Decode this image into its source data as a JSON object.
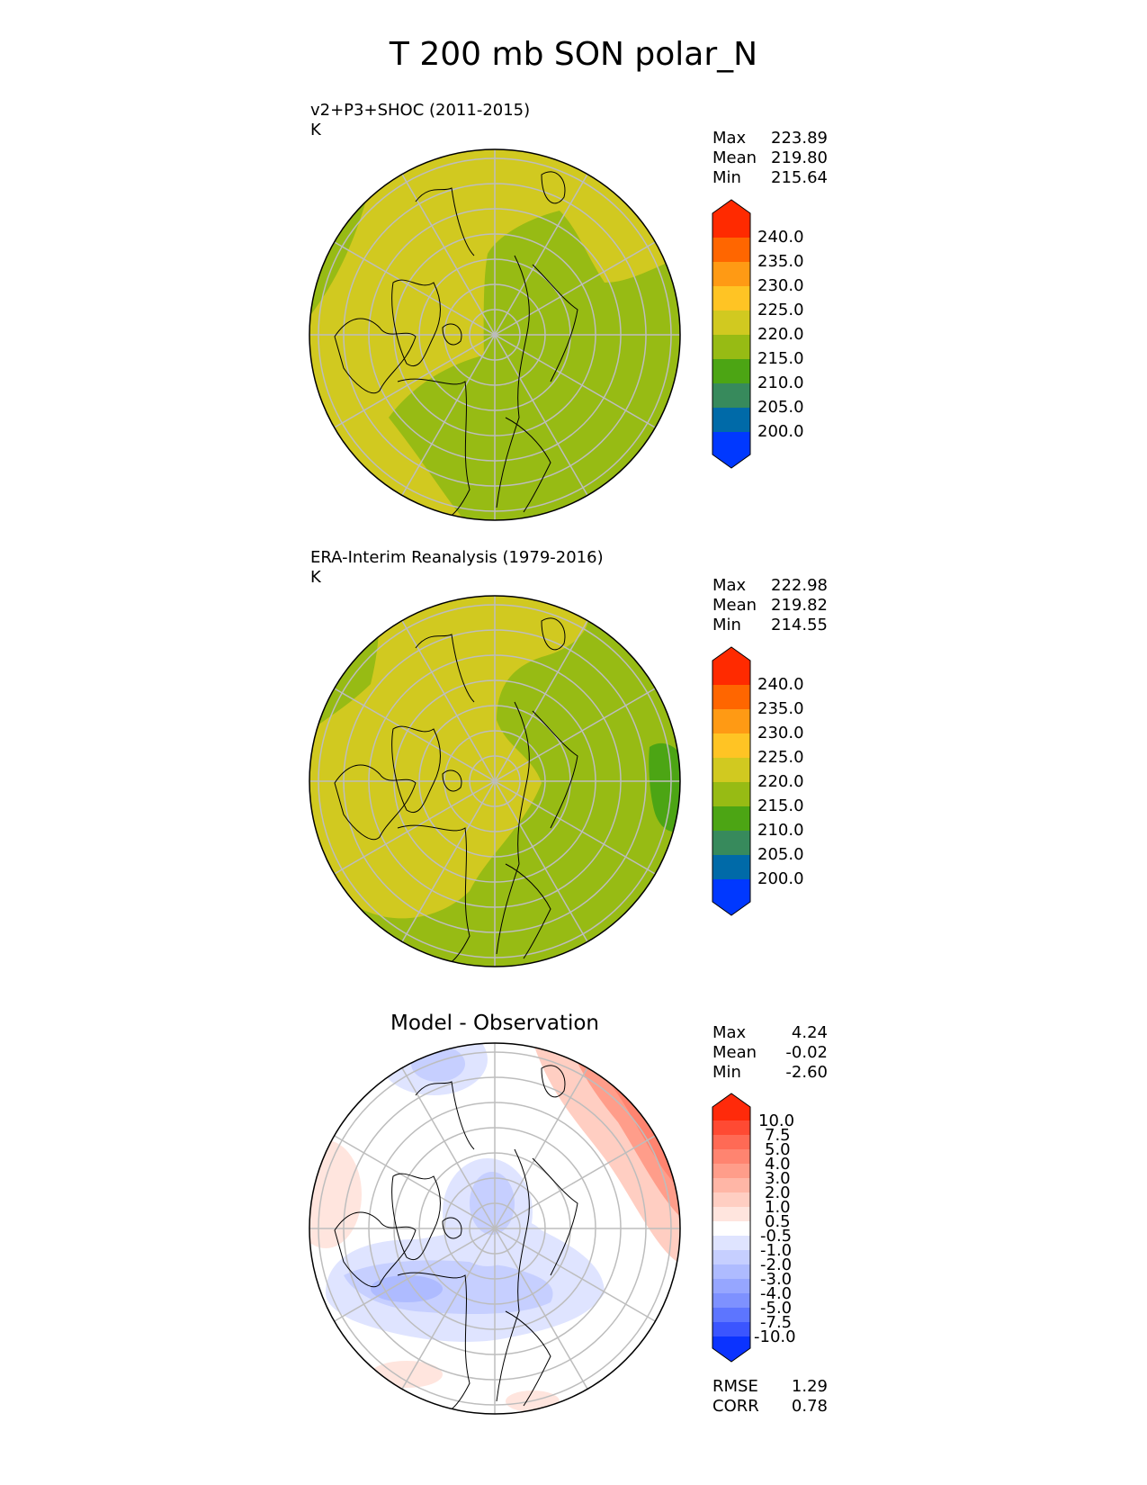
{
  "title": "T 200 mb SON polar_N",
  "panels": [
    {
      "id": "test",
      "title_line1": "v2+P3+SHOC (2011-2015)",
      "title_line2": "K",
      "stats": [
        {
          "label": "Max",
          "value": "223.89"
        },
        {
          "label": "Mean",
          "value": "219.80"
        },
        {
          "label": "Min",
          "value": "215.64"
        }
      ]
    },
    {
      "id": "ref",
      "title_line1": "ERA-Interim Reanalysis (1979-2016)",
      "title_line2": "K",
      "stats": [
        {
          "label": "Max",
          "value": "222.98"
        },
        {
          "label": "Mean",
          "value": "219.82"
        },
        {
          "label": "Min",
          "value": "214.55"
        }
      ]
    },
    {
      "id": "diff",
      "title": "Model - Observation",
      "stats": [
        {
          "label": "Max",
          "value": "4.24"
        },
        {
          "label": "Mean",
          "value": "-0.02"
        },
        {
          "label": "Min",
          "value": "-2.60"
        }
      ],
      "metrics": [
        {
          "label": "RMSE",
          "value": "1.29"
        },
        {
          "label": "CORR",
          "value": "0.78"
        }
      ]
    }
  ],
  "colorbars": {
    "field": {
      "ticks": [
        "240.0",
        "235.0",
        "230.0",
        "225.0",
        "220.0",
        "215.0",
        "210.0",
        "205.0",
        "200.0"
      ],
      "colors_top_to_bottom": [
        "#ff2a00",
        "#ff6600",
        "#ff9a14",
        "#ffc424",
        "#d1c920",
        "#97bb14",
        "#4ca514",
        "#378a5c",
        "#006aa8",
        "#0038ff"
      ]
    },
    "diff": {
      "ticks": [
        "10.0",
        "7.5",
        "5.0",
        "4.0",
        "3.0",
        "2.0",
        "1.0",
        "0.5",
        "-0.5",
        "-1.0",
        "-2.0",
        "-3.0",
        "-4.0",
        "-5.0",
        "-7.5",
        "-10.0"
      ],
      "colors_top_to_bottom": [
        "#ff2a0a",
        "#ff4a33",
        "#ff6a55",
        "#ff8470",
        "#ff9d8a",
        "#ffb6a6",
        "#ffcec2",
        "#ffe5de",
        "#ffffff",
        "#dfe4ff",
        "#c6cfff",
        "#aebbff",
        "#96a6ff",
        "#7e91ff",
        "#5d75ff",
        "#3b55ff",
        "#0b33ff"
      ]
    }
  },
  "chart_data": [
    {
      "type": "heatmap",
      "projection": "north polar stereographic",
      "title": "v2+P3+SHOC (2011-2015)",
      "units": "K",
      "levels": [
        200,
        205,
        210,
        215,
        220,
        225,
        230,
        235,
        240
      ],
      "extend": "both",
      "regions": [
        {
          "category": "215-220",
          "description": "eastern hemisphere sector and North Pacific / Siberia"
        },
        {
          "category": "220-225",
          "description": "North Atlantic, Greenland, North America, northwest corner"
        }
      ],
      "max": 223.89,
      "mean": 219.8,
      "min": 215.64
    },
    {
      "type": "heatmap",
      "projection": "north polar stereographic",
      "title": "ERA-Interim Reanalysis (1979-2016)",
      "units": "K",
      "levels": [
        200,
        205,
        210,
        215,
        220,
        225,
        230,
        235,
        240
      ],
      "extend": "both",
      "regions": [
        {
          "category": "215-220",
          "description": "eastern sector and south"
        },
        {
          "category": "220-225",
          "description": "central Arctic, North America, North Atlantic"
        },
        {
          "category": "210-215",
          "description": "small patch at eastern edge"
        }
      ],
      "max": 222.98,
      "mean": 219.82,
      "min": 214.55
    },
    {
      "type": "heatmap",
      "projection": "north polar stereographic",
      "title": "Model - Observation",
      "units": "K",
      "levels": [
        -10,
        -7.5,
        -5,
        -4,
        -3,
        -2,
        -1,
        -0.5,
        0.5,
        1,
        2,
        3,
        4,
        5,
        7.5,
        10
      ],
      "extend": "both",
      "max": 4.24,
      "mean": -0.02,
      "min": -2.6,
      "rmse": 1.29,
      "corr": 0.78
    }
  ]
}
